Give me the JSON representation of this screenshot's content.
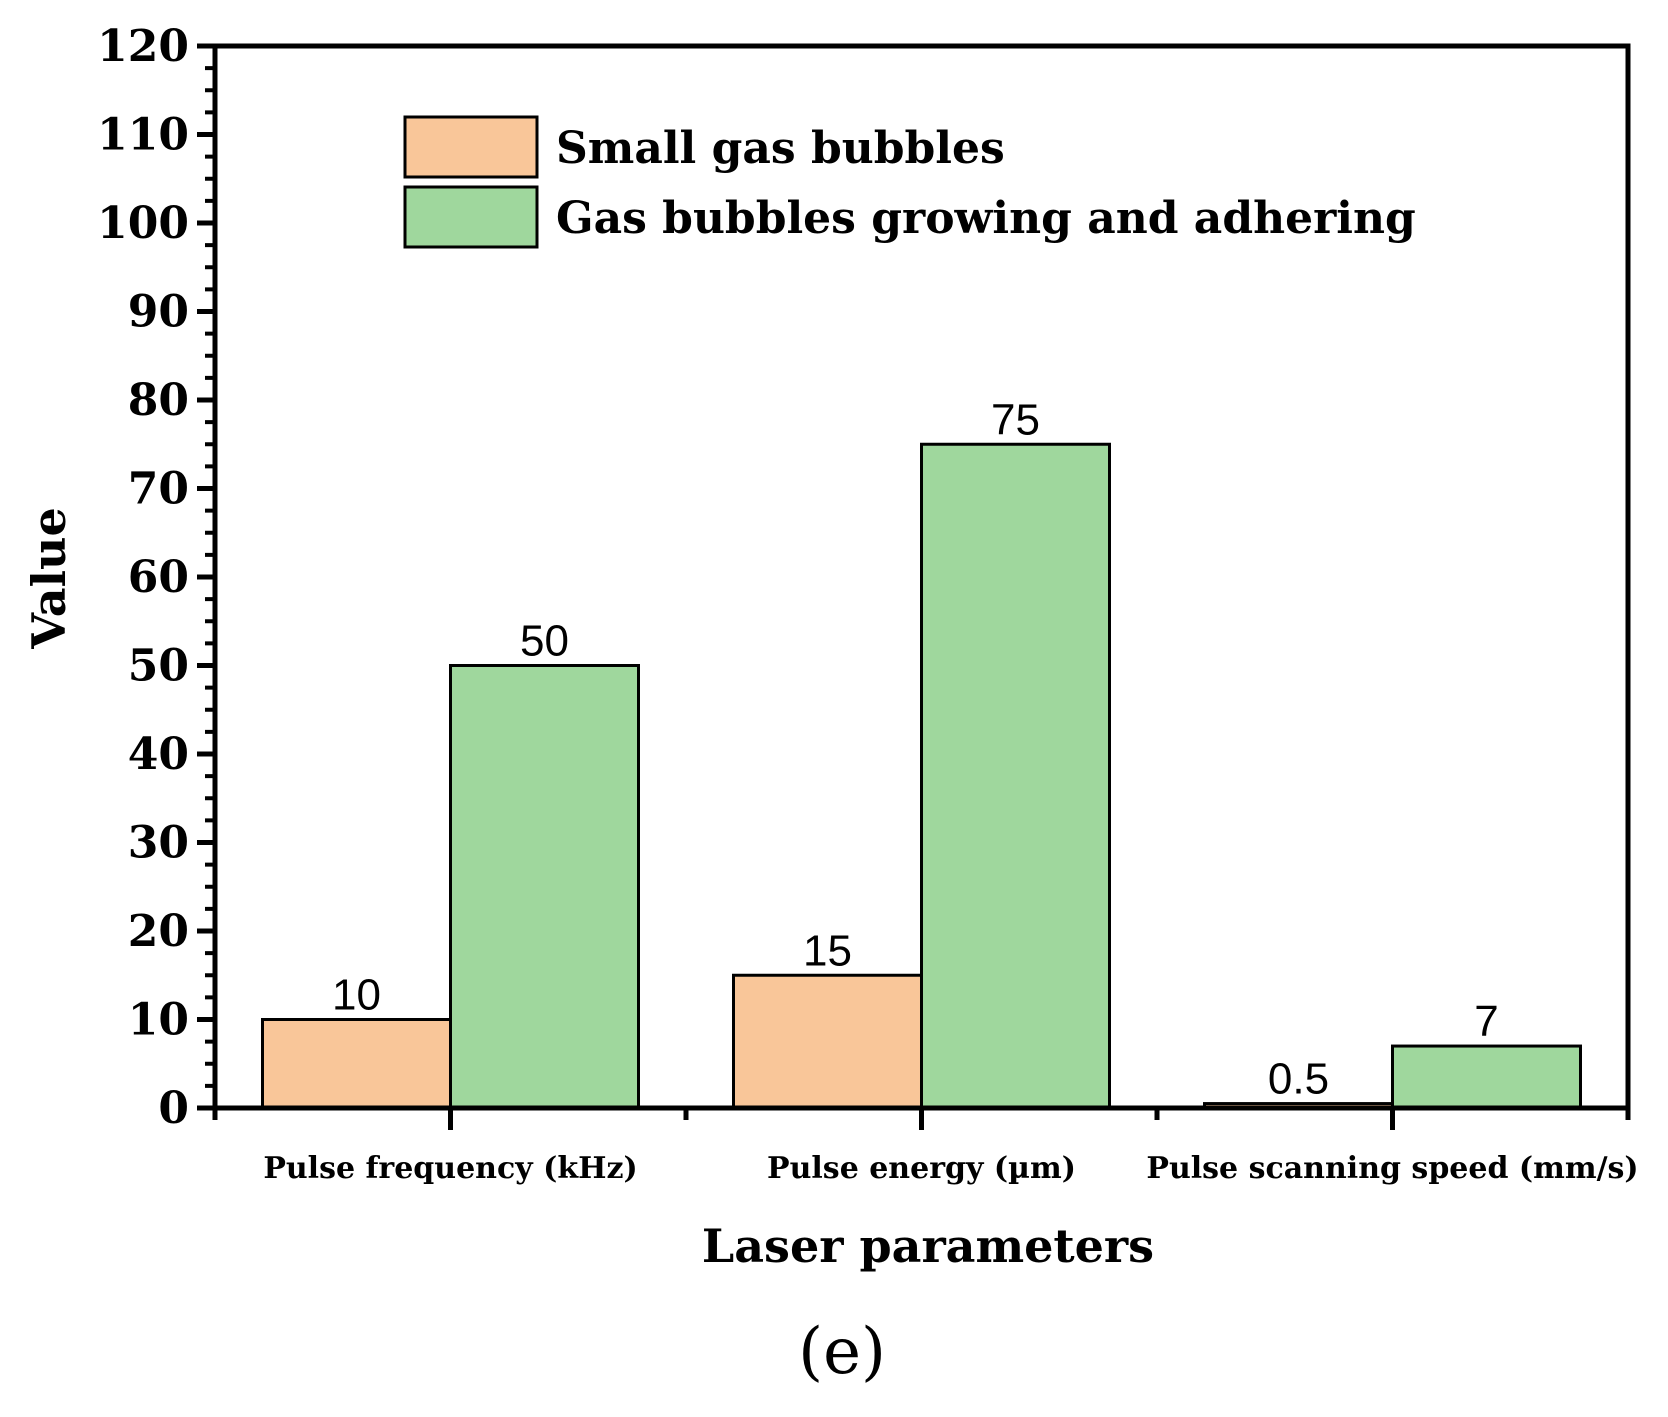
{
  "chart_data": {
    "type": "bar",
    "title": "",
    "xlabel": "Laser parameters",
    "ylabel": "Value",
    "ylim": [
      0,
      120
    ],
    "y_major_ticks": [
      0,
      10,
      20,
      30,
      40,
      50,
      60,
      70,
      80,
      90,
      100,
      110,
      120
    ],
    "categories": [
      "Pulse frequency (kHz)",
      "Pulse energy (µm)",
      "Pulse scanning speed (mm/s)"
    ],
    "series": [
      {
        "name": "Small gas bubbles",
        "values": [
          10,
          15,
          0.5
        ],
        "labels": [
          "10",
          "15",
          "0.5"
        ],
        "color": "#f9c699"
      },
      {
        "name": "Gas bubbles growing and adhering",
        "values": [
          50,
          75,
          7
        ],
        "labels": [
          "50",
          "75",
          "7"
        ],
        "color": "#9fd79d"
      }
    ],
    "legend": "top-left",
    "grid": false,
    "panel_label": "(e)"
  }
}
